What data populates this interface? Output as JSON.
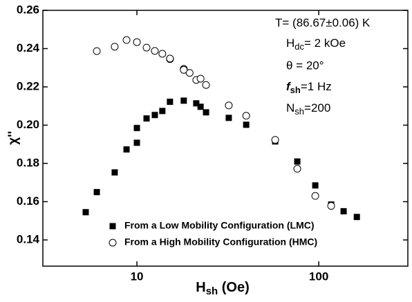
{
  "chart_data": {
    "type": "scatter",
    "x_label": {
      "main": "H",
      "sub": "sh",
      "rest": " (Oe)"
    },
    "y_label": "χ''",
    "xscale": "log",
    "xlim": [
      3.04,
      309
    ],
    "xticks": [
      10,
      100
    ],
    "ylim": [
      0.1263,
      0.26
    ],
    "yticks": [
      0.14,
      0.16,
      0.18,
      {
        "value": 0.2,
        "label": "0.20"
      },
      0.22,
      0.24,
      0.26
    ],
    "legend": "lower left",
    "annotations": [
      {
        "text": "T= (86.67±0.06) K"
      },
      {
        "main": "H",
        "sub": "dc",
        "rest": "= 2 kOe"
      },
      {
        "text": "θ = 20°"
      },
      {
        "main": "f",
        "sub": "sh",
        "rest": "=1 Hz"
      },
      {
        "main": "N",
        "sub": "sh",
        "rest": "=200"
      }
    ],
    "series": [
      {
        "name": "From a Low Mobility Configuration (LMC)",
        "marker": "square",
        "color": "#000000",
        "x": [
          5.23,
          6.02,
          7.55,
          8.77,
          10,
          10,
          11.3,
          12.55,
          13.8,
          15.2,
          18.1,
          21.2,
          22.4,
          24.0,
          32.0,
          39.9,
          57.6,
          76.2,
          95.7,
          117,
          137,
          162
        ],
        "values": [
          0.1545,
          0.165,
          0.1753,
          0.1873,
          0.1908,
          0.1985,
          0.2035,
          0.2053,
          0.2074,
          0.2122,
          0.2128,
          0.2114,
          0.2096,
          0.2067,
          0.2038,
          0.2002,
          0.1915,
          0.181,
          0.1685,
          0.1585,
          0.155,
          0.152
        ]
      },
      {
        "name": "From a High Mobility Configuration (HMC)",
        "marker": "circle",
        "color": "#000000",
        "x": [
          6.02,
          7.55,
          8.77,
          10,
          11.3,
          12.55,
          13.8,
          15.2,
          15.2,
          18.1,
          18.1,
          19.5,
          21.2,
          22.4,
          24.0,
          32.0,
          39.9,
          57.6,
          76.2,
          95.7,
          117
        ],
        "values": [
          0.2387,
          0.241,
          0.2445,
          0.2434,
          0.2405,
          0.2388,
          0.2373,
          0.2345,
          0.2348,
          0.2294,
          0.2289,
          0.2273,
          0.2236,
          0.2243,
          0.221,
          0.2103,
          0.2049,
          0.1923,
          0.1772,
          0.163,
          0.1578
        ]
      }
    ]
  }
}
